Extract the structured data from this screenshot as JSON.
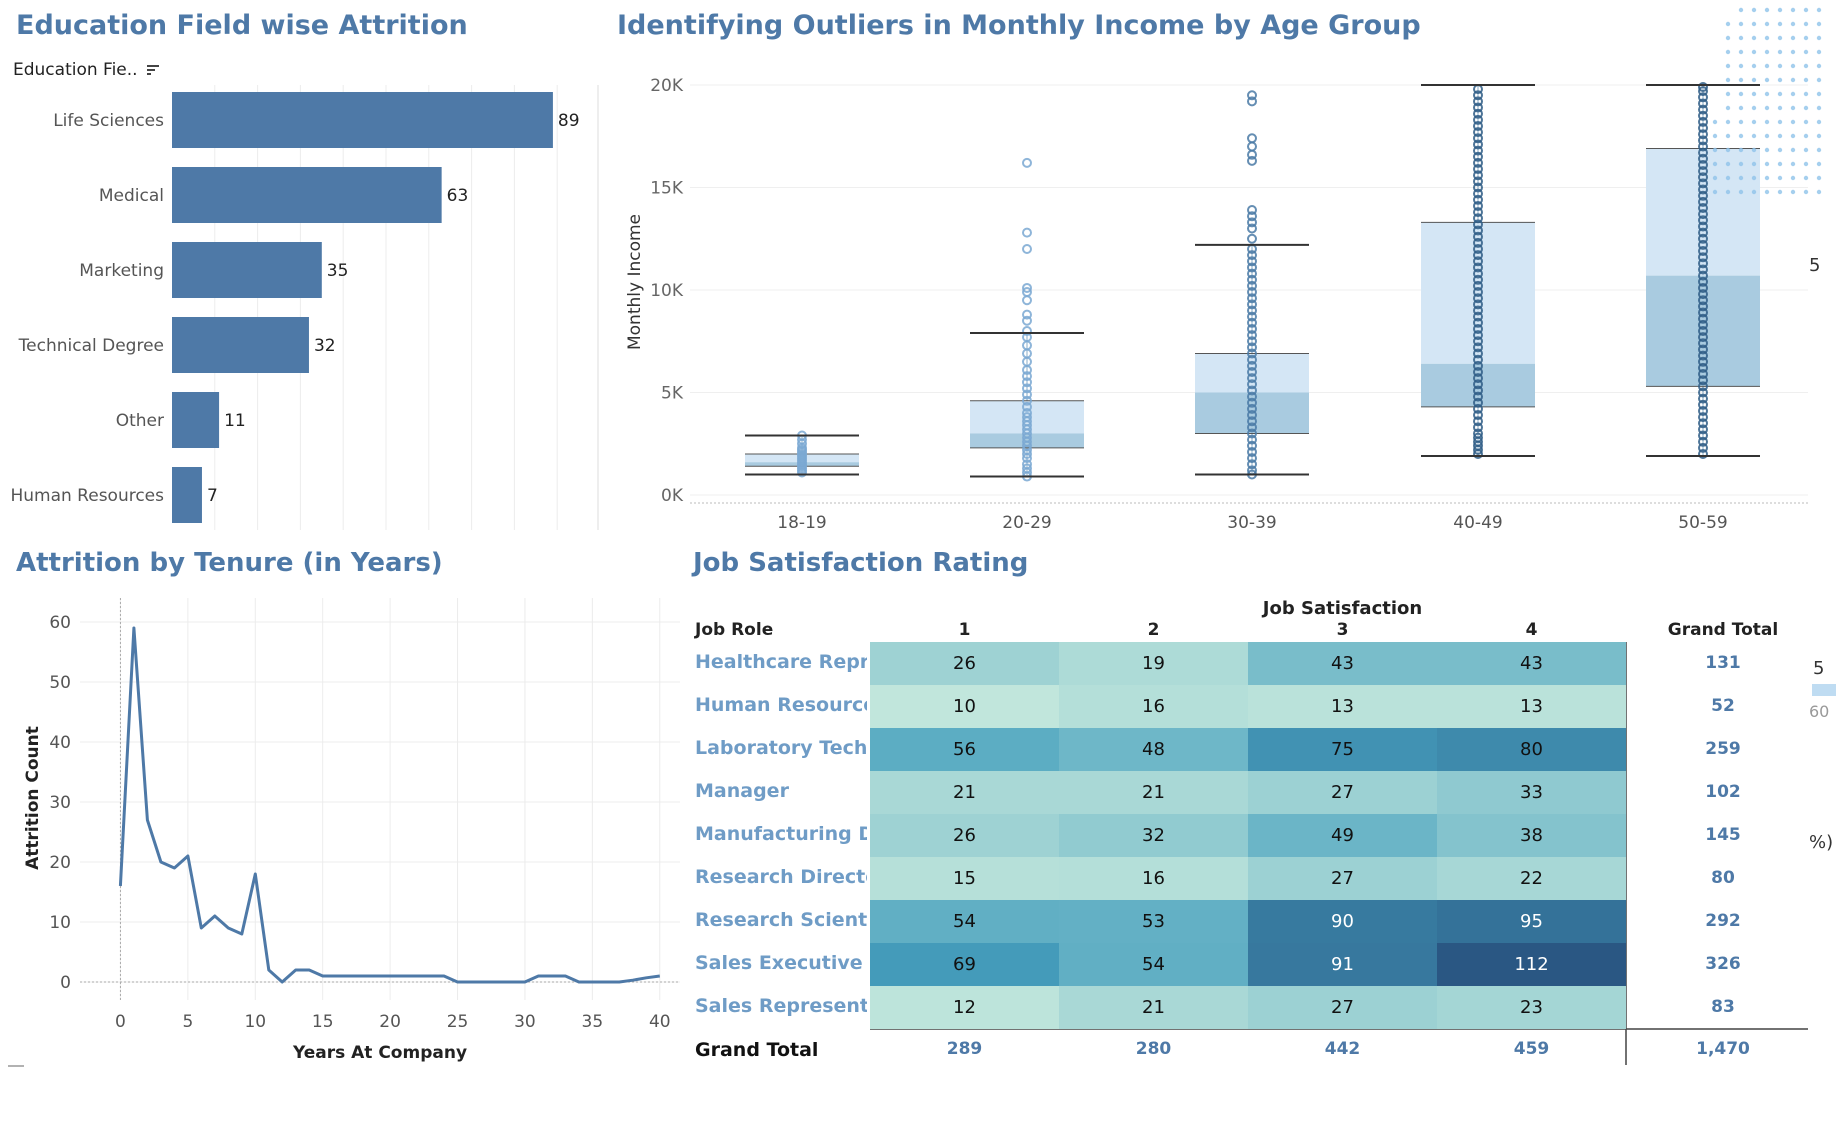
{
  "titles": {
    "education": "Education Field wise Attrition",
    "outliers": "Identifying Outliers in Monthly Income by Age Group",
    "tenure": "Attrition by Tenure (in Years)",
    "job": "Job Satisfaction Rating"
  },
  "education_sort_label": "Education Fie..",
  "edge_fragments": [
    "5",
    "5",
    "60",
    "%)"
  ],
  "chart_data": [
    {
      "type": "bar",
      "title": "Education Field wise Attrition",
      "categories": [
        "Life Sciences",
        "Medical",
        "Marketing",
        "Technical Degree",
        "Other",
        "Human Resources"
      ],
      "values": [
        89,
        63,
        35,
        32,
        11,
        7
      ],
      "xlim": [
        0,
        100
      ],
      "grid": true
    },
    {
      "type": "box",
      "title": "Identifying Outliers in Monthly Income by Age Group",
      "ylabel": "Monthly Income",
      "categories": [
        "18-19",
        "20-29",
        "30-39",
        "40-49",
        "50-59"
      ],
      "yticks": [
        "0K",
        "5K",
        "10K",
        "15K",
        "20K"
      ],
      "ylim": [
        0,
        20000
      ],
      "boxes": [
        {
          "whisker_low": 1000,
          "q1": 1400,
          "median": 1600,
          "q3": 2000,
          "whisker_high": 2900,
          "points": [
            1100,
            1200,
            1300,
            1400,
            1500,
            1600,
            1700,
            1800,
            1900,
            2000,
            2100,
            2200,
            2300,
            2500,
            2700,
            2900
          ]
        },
        {
          "whisker_low": 900,
          "q1": 2300,
          "median": 3000,
          "q3": 4600,
          "whisker_high": 7900,
          "points": [
            900,
            1100,
            1300,
            1500,
            1800,
            2000,
            2200,
            2400,
            2600,
            2800,
            3000,
            3200,
            3400,
            3600,
            3800,
            4000,
            4300,
            4600,
            4900,
            5200,
            5500,
            5800,
            6100,
            6500,
            6900,
            7300,
            7700,
            8000,
            8500,
            8800,
            9500,
            9900,
            10100,
            12000,
            12800,
            16200
          ]
        },
        {
          "whisker_low": 1000,
          "q1": 3000,
          "median": 5000,
          "q3": 6900,
          "whisker_high": 12200,
          "points": [
            1000,
            1200,
            1500,
            1800,
            2100,
            2400,
            2700,
            3000,
            3300,
            3600,
            3900,
            4200,
            4500,
            4800,
            5100,
            5400,
            5700,
            6000,
            6300,
            6600,
            6900,
            7200,
            7500,
            7800,
            8100,
            8400,
            8700,
            9000,
            9300,
            9600,
            9900,
            10200,
            10500,
            10800,
            11100,
            11400,
            11700,
            12000,
            12500,
            13000,
            13300,
            13600,
            13900,
            16300,
            16600,
            17000,
            17400,
            19200,
            19500
          ]
        },
        {
          "whisker_low": 1900,
          "q1": 4300,
          "median": 6400,
          "q3": 13300,
          "whisker_high": 20000,
          "points": [
            2000,
            2200,
            2400,
            2600,
            2800,
            3000,
            3300,
            3600,
            3900,
            4200,
            4500,
            4800,
            5100,
            5400,
            5700,
            6000,
            6300,
            6600,
            6900,
            7200,
            7500,
            7800,
            8100,
            8400,
            8700,
            9000,
            9300,
            9600,
            9900,
            10200,
            10500,
            10800,
            11100,
            11400,
            11700,
            12000,
            12300,
            12600,
            12900,
            13200,
            13500,
            13800,
            14100,
            14400,
            14700,
            15000,
            15300,
            15600,
            15900,
            16200,
            16500,
            16800,
            17100,
            17400,
            17700,
            18000,
            18300,
            18600,
            18900,
            19200,
            19500,
            19800
          ]
        },
        {
          "whisker_low": 1900,
          "q1": 5300,
          "median": 10700,
          "q3": 16900,
          "whisker_high": 20000,
          "points": [
            2000,
            2300,
            2600,
            2900,
            3200,
            3500,
            3800,
            4100,
            4400,
            4700,
            5000,
            5300,
            5600,
            5900,
            6200,
            6500,
            6800,
            7100,
            7400,
            7700,
            8000,
            8300,
            8600,
            8900,
            9200,
            9500,
            9800,
            10100,
            10400,
            10700,
            11000,
            11300,
            11600,
            11900,
            12200,
            12500,
            12800,
            13100,
            13400,
            13700,
            14000,
            14300,
            14600,
            14900,
            15200,
            15500,
            15800,
            16100,
            16400,
            16700,
            17000,
            17300,
            17600,
            17900,
            18200,
            18500,
            18800,
            19100,
            19400,
            19700,
            19900
          ]
        }
      ]
    },
    {
      "type": "line",
      "title": "Attrition by Tenure (in Years)",
      "xlabel": "Years At Company",
      "ylabel": "Attrition Count",
      "x": [
        0,
        1,
        2,
        3,
        4,
        5,
        6,
        7,
        8,
        9,
        10,
        11,
        12,
        13,
        14,
        15,
        16,
        17,
        18,
        19,
        20,
        21,
        22,
        23,
        24,
        25,
        26,
        27,
        28,
        29,
        30,
        31,
        32,
        33,
        34,
        35,
        36,
        37,
        38,
        39,
        40
      ],
      "y": [
        16,
        59,
        27,
        20,
        19,
        21,
        9,
        11,
        9,
        8,
        18,
        2,
        0,
        2,
        2,
        1,
        1,
        1,
        1,
        1,
        1,
        1,
        1,
        1,
        1,
        0,
        0,
        0,
        0,
        0,
        0,
        1,
        1,
        1,
        0,
        0,
        0,
        0,
        0.3,
        0.7,
        1
      ],
      "xticks": [
        0,
        5,
        10,
        15,
        20,
        25,
        30,
        35,
        40
      ],
      "yticks": [
        0,
        10,
        20,
        30,
        40,
        50,
        60
      ],
      "xlim": [
        -3,
        41.5
      ],
      "ylim": [
        -3,
        64
      ],
      "grid": true
    },
    {
      "type": "heatmap",
      "title": "Job Satisfaction Rating",
      "column_header": "Job Satisfaction",
      "row_header": "Job Role",
      "columns": [
        "1",
        "2",
        "3",
        "4"
      ],
      "total_label": "Grand Total",
      "rows": [
        {
          "role": "Healthcare Repre..",
          "values": [
            26,
            19,
            43,
            43
          ],
          "total": "131"
        },
        {
          "role": "Human Resources",
          "values": [
            10,
            16,
            13,
            13
          ],
          "total": "52"
        },
        {
          "role": "Laboratory Techn..",
          "values": [
            56,
            48,
            75,
            80
          ],
          "total": "259"
        },
        {
          "role": "Manager",
          "values": [
            21,
            21,
            27,
            33
          ],
          "total": "102"
        },
        {
          "role": "Manufacturing Di..",
          "values": [
            26,
            32,
            49,
            38
          ],
          "total": "145"
        },
        {
          "role": "Research Director",
          "values": [
            15,
            16,
            27,
            22
          ],
          "total": "80"
        },
        {
          "role": "Research Scientist",
          "values": [
            54,
            53,
            90,
            95
          ],
          "total": "292"
        },
        {
          "role": "Sales Executive",
          "values": [
            69,
            54,
            91,
            112
          ],
          "total": "326"
        },
        {
          "role": "Sales Representa..",
          "values": [
            12,
            21,
            27,
            23
          ],
          "total": "83"
        }
      ],
      "column_totals": [
        "289",
        "280",
        "442",
        "459"
      ],
      "grand_total": "1,470",
      "color_low": "#c1e6dc",
      "color_high": "#2a5783"
    }
  ]
}
